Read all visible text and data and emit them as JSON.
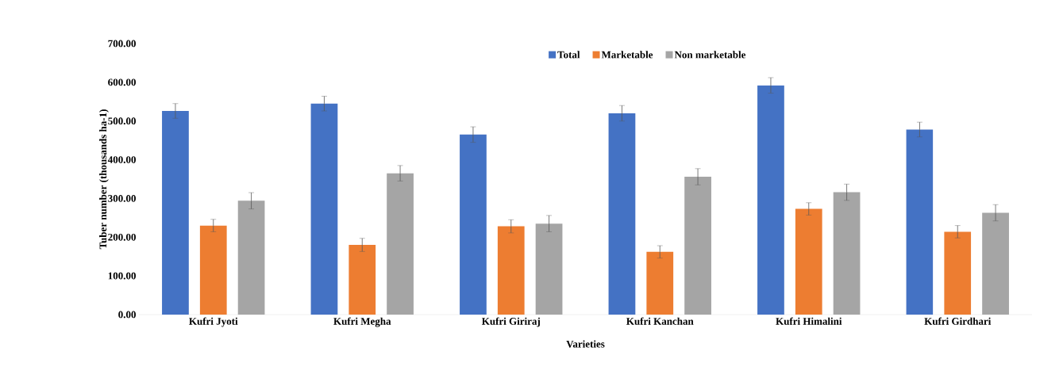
{
  "chart_data": {
    "type": "bar",
    "xlabel": "Varieties",
    "ylabel": "Tuber number (thousands ha-1)",
    "categories": [
      "Kufri Jyoti",
      "Kufri Megha",
      "Kufri Giriraj",
      "Kufri Kanchan",
      "Kufri Himalini",
      "Kufri Girdhari"
    ],
    "series": [
      {
        "name": "Total",
        "color": "#4472c4",
        "values": [
          526,
          545,
          465,
          520,
          592,
          478
        ],
        "errors": [
          19,
          19,
          20,
          20,
          20,
          19
        ]
      },
      {
        "name": "Marketable",
        "color": "#ed7d31",
        "values": [
          230,
          180,
          228,
          162,
          273,
          214
        ],
        "errors": [
          16,
          17,
          17,
          16,
          16,
          16
        ]
      },
      {
        "name": "Non marketable",
        "color": "#a5a5a5",
        "values": [
          294,
          365,
          235,
          356,
          316,
          263
        ],
        "errors": [
          21,
          20,
          21,
          21,
          21,
          21
        ]
      }
    ],
    "ylim": [
      0,
      700
    ],
    "yticks": [
      {
        "value": 0,
        "label": "0.00"
      },
      {
        "value": 100,
        "label": "100.00"
      },
      {
        "value": 200,
        "label": "200.00"
      },
      {
        "value": 300,
        "label": "300.00"
      },
      {
        "value": 400,
        "label": "400.00"
      },
      {
        "value": 500,
        "label": "500.00"
      },
      {
        "value": 600,
        "label": "600.00"
      },
      {
        "value": 700,
        "label": "700.00"
      }
    ],
    "grid": false,
    "legend": "top"
  }
}
